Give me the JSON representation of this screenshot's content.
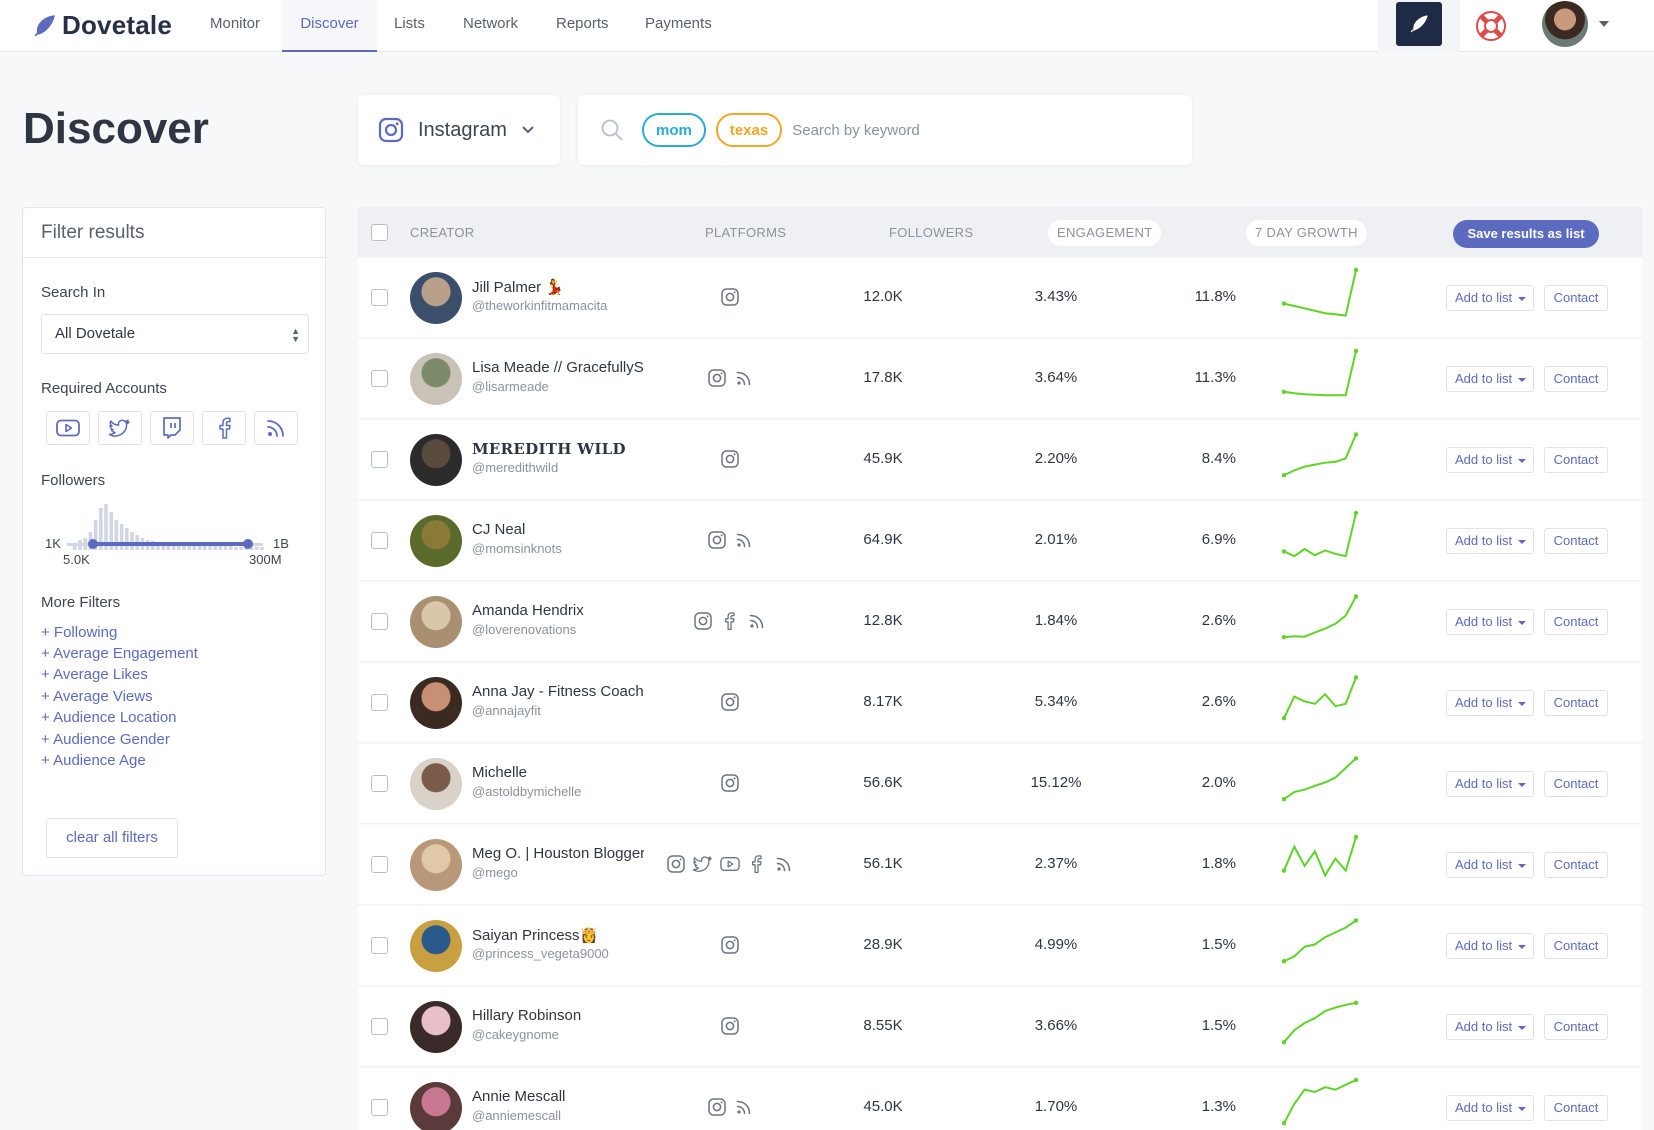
{
  "brand": {
    "name": "Dovetale"
  },
  "nav": {
    "items": [
      {
        "label": "Monitor",
        "active": false
      },
      {
        "label": "Discover",
        "active": true
      },
      {
        "label": "Lists",
        "active": false
      },
      {
        "label": "Network",
        "active": false
      },
      {
        "label": "Reports",
        "active": false
      },
      {
        "label": "Payments",
        "active": false
      }
    ]
  },
  "page": {
    "title": "Discover"
  },
  "platform_select": {
    "value": "Instagram"
  },
  "search": {
    "placeholder": "Search by keyword",
    "chips": [
      "mom",
      "texas"
    ]
  },
  "filters": {
    "title": "Filter results",
    "search_in_label": "Search In",
    "search_in_value": "All Dovetale",
    "required_accounts_label": "Required Accounts",
    "required_accounts": [
      "youtube-icon",
      "twitter-icon",
      "twitch-icon",
      "facebook-icon",
      "rss-icon"
    ],
    "followers_label": "Followers",
    "followers_range": {
      "min_label": "1K",
      "max_label": "1B",
      "low": "5.0K",
      "high": "300M"
    },
    "more_filters_label": "More Filters",
    "more_filters": [
      "+ Following",
      "+ Average Engagement",
      "+ Average Likes",
      "+ Average Views",
      "+ Audience Location",
      "+ Audience Gender",
      "+ Audience Age"
    ],
    "clear_label": "clear all filters"
  },
  "table": {
    "headers": {
      "creator": "CREATOR",
      "platforms": "PLATFORMS",
      "followers": "FOLLOWERS",
      "engagement": "ENGAGEMENT",
      "growth": "7 DAY GROWTH"
    },
    "save_label": "Save results as list",
    "add_label": "Add to list",
    "contact_label": "Contact",
    "rows": [
      {
        "name": "Jill Palmer 💃",
        "handle": "@theworkinfitmamacita",
        "platforms": [
          "instagram"
        ],
        "followers": "12.0K",
        "engagement": "3.43%",
        "growth": "11.8%",
        "trend": [
          0.3,
          0.25,
          0.2,
          0.15,
          0.1,
          0.08,
          0.05,
          1.0
        ],
        "avatar": [
          "#b8a08a",
          "#3b4f6b"
        ]
      },
      {
        "name": "Lisa Meade // GracefullyS",
        "handle": "@lisarmeade",
        "platforms": [
          "instagram",
          "rss"
        ],
        "followers": "17.8K",
        "engagement": "3.64%",
        "growth": "11.3%",
        "trend": [
          0.15,
          0.12,
          0.1,
          0.09,
          0.08,
          0.08,
          0.08,
          1.0
        ],
        "avatar": [
          "#7d8a6a",
          "#c9c2b6"
        ]
      },
      {
        "name": "MEREDITH WILD",
        "serif": true,
        "handle": "@meredithwild",
        "platforms": [
          "instagram"
        ],
        "followers": "45.9K",
        "engagement": "2.20%",
        "growth": "8.4%",
        "trend": [
          0.1,
          0.2,
          0.28,
          0.32,
          0.36,
          0.38,
          0.45,
          0.95
        ],
        "avatar": [
          "#5a4a3e",
          "#2b2b2b"
        ]
      },
      {
        "name": "CJ Neal",
        "handle": "@momsinknots",
        "platforms": [
          "instagram",
          "rss"
        ],
        "followers": "64.9K",
        "engagement": "2.01%",
        "growth": "6.9%",
        "trend": [
          0.2,
          0.1,
          0.25,
          0.12,
          0.22,
          0.15,
          0.1,
          1.0
        ],
        "avatar": [
          "#8a7a3a",
          "#5a6a2a"
        ]
      },
      {
        "name": "Amanda Hendrix",
        "handle": "@loverenovations",
        "platforms": [
          "instagram",
          "facebook",
          "rss"
        ],
        "followers": "12.8K",
        "engagement": "1.84%",
        "growth": "2.6%",
        "trend": [
          0.1,
          0.12,
          0.11,
          0.2,
          0.28,
          0.38,
          0.55,
          0.95
        ],
        "avatar": [
          "#d8c7a8",
          "#a89070"
        ]
      },
      {
        "name": "Anna Jay - Fitness Coach",
        "handle": "@annajayfit",
        "platforms": [
          "instagram"
        ],
        "followers": "8.17K",
        "engagement": "5.34%",
        "growth": "2.6%",
        "trend": [
          0.1,
          0.55,
          0.45,
          0.4,
          0.6,
          0.35,
          0.4,
          0.95
        ],
        "avatar": [
          "#c78f74",
          "#3a2a22"
        ]
      },
      {
        "name": "Michelle",
        "handle": "@astoldbymichelle",
        "platforms": [
          "instagram"
        ],
        "followers": "56.6K",
        "engagement": "15.12%",
        "growth": "2.0%",
        "trend": [
          0.1,
          0.25,
          0.3,
          0.38,
          0.45,
          0.55,
          0.75,
          0.95
        ],
        "avatar": [
          "#7a5a48",
          "#d9d2c8"
        ]
      },
      {
        "name": "Meg O. | Houston Blogger",
        "handle": "@mego",
        "platforms": [
          "instagram",
          "twitter",
          "youtube",
          "facebook",
          "rss"
        ],
        "followers": "56.1K",
        "engagement": "2.37%",
        "growth": "1.8%",
        "trend": [
          0.3,
          0.8,
          0.4,
          0.7,
          0.2,
          0.55,
          0.3,
          1.0
        ],
        "avatar": [
          "#e0c8a8",
          "#b89878"
        ]
      },
      {
        "name": "Saiyan Princess👸",
        "handle": "@princess_vegeta9000",
        "platforms": [
          "instagram"
        ],
        "followers": "28.9K",
        "engagement": "4.99%",
        "growth": "1.5%",
        "trend": [
          0.1,
          0.2,
          0.4,
          0.45,
          0.6,
          0.7,
          0.8,
          0.95
        ],
        "avatar": [
          "#2a5a8a",
          "#c8a040"
        ]
      },
      {
        "name": "Hillary Robinson",
        "handle": "@cakeygnome",
        "platforms": [
          "instagram"
        ],
        "followers": "8.55K",
        "engagement": "3.66%",
        "growth": "1.5%",
        "trend": [
          0.1,
          0.35,
          0.5,
          0.6,
          0.75,
          0.82,
          0.88,
          0.92
        ],
        "avatar": [
          "#e8c0c8",
          "#3a2a2a"
        ]
      },
      {
        "name": "Annie Mescall",
        "handle": "@anniemescall",
        "platforms": [
          "instagram",
          "rss"
        ],
        "followers": "45.0K",
        "engagement": "1.70%",
        "growth": "1.3%",
        "trend": [
          0.1,
          0.5,
          0.8,
          0.75,
          0.85,
          0.8,
          0.9,
          1.0
        ],
        "avatar": [
          "#c87890",
          "#5a3a3a"
        ]
      }
    ]
  },
  "colors": {
    "accent": "#5c6bc0",
    "spark": "#5fd428",
    "dark": "#1f2a44"
  }
}
